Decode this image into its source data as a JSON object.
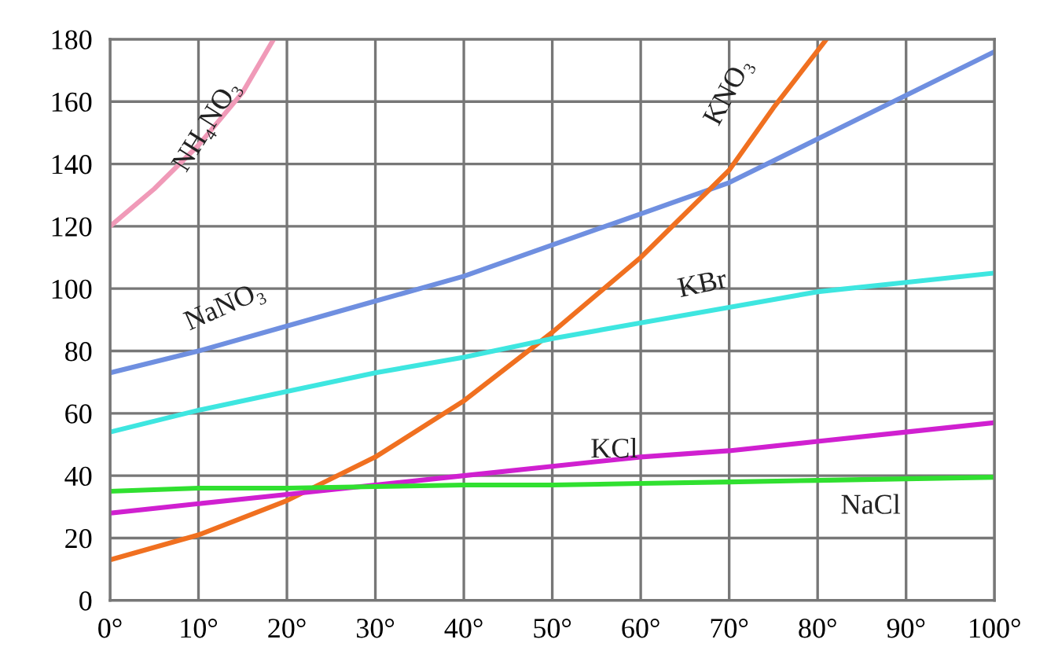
{
  "chart_data": {
    "type": "line",
    "x": [
      0,
      10,
      20,
      30,
      40,
      50,
      60,
      70,
      80,
      90,
      100
    ],
    "series": [
      {
        "name": "NH₄NO₃",
        "color": "#f09ab8",
        "x": [
          0,
          5,
          10,
          15,
          18.5
        ],
        "values": [
          120,
          132,
          146,
          163,
          180
        ]
      },
      {
        "name": "NaNO₃",
        "color": "#6f8fe0",
        "values": [
          73,
          80,
          88,
          96,
          104,
          114,
          124,
          134,
          148,
          162,
          176
        ]
      },
      {
        "name": "KNO₃",
        "color": "#f07020",
        "x": [
          0,
          10,
          20,
          30,
          40,
          50,
          60,
          70,
          75,
          81
        ],
        "values": [
          13,
          21,
          32,
          46,
          64,
          86,
          110,
          138,
          158,
          180
        ]
      },
      {
        "name": "KBr",
        "color": "#3ee6e0",
        "values": [
          54,
          61,
          67,
          73,
          78,
          84,
          89,
          94,
          99,
          102,
          105
        ]
      },
      {
        "name": "KCl",
        "color": "#d020d0",
        "values": [
          28,
          31,
          34,
          37,
          40,
          43,
          46,
          48,
          51,
          54,
          57
        ]
      },
      {
        "name": "NaCl",
        "color": "#30e030",
        "values": [
          35,
          36,
          36,
          36.5,
          37,
          37,
          37.5,
          38,
          38.5,
          39,
          39.5
        ]
      }
    ],
    "xlim": [
      0,
      100
    ],
    "ylim": [
      0,
      180
    ],
    "xticks": [
      {
        "value": 0,
        "label": "0°"
      },
      {
        "value": 10,
        "label": "10°"
      },
      {
        "value": 20,
        "label": "20°"
      },
      {
        "value": 30,
        "label": "30°"
      },
      {
        "value": 40,
        "label": "40°"
      },
      {
        "value": 50,
        "label": "50°"
      },
      {
        "value": 60,
        "label": "60°"
      },
      {
        "value": 70,
        "label": "70°"
      },
      {
        "value": 80,
        "label": "80°"
      },
      {
        "value": 90,
        "label": "90°"
      },
      {
        "value": 100,
        "label": "100°"
      }
    ],
    "yticks": [
      0,
      20,
      40,
      60,
      80,
      100,
      120,
      140,
      160,
      180
    ],
    "grid": true,
    "legend": false,
    "marker": "none",
    "line_style": "solid"
  }
}
